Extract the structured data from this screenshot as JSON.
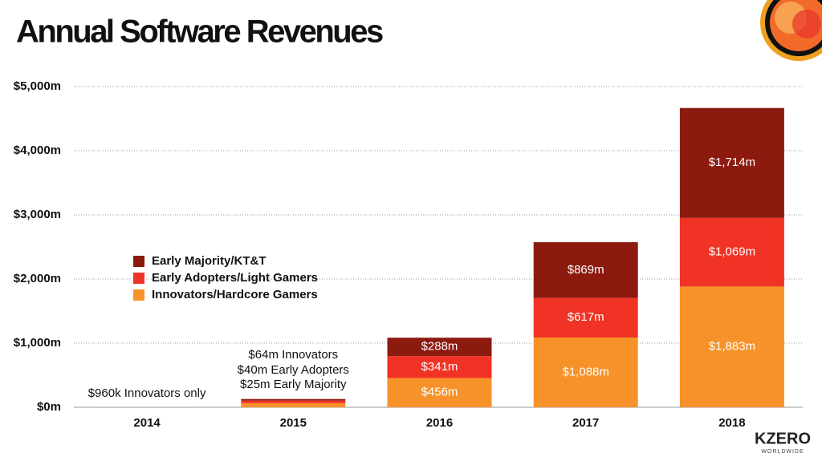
{
  "chart_data": {
    "type": "stacked_bar",
    "title": "Annual Software Revenues",
    "categories": [
      "2014",
      "2015",
      "2016",
      "2017",
      "2018"
    ],
    "series": [
      {
        "name": "Innovators/Hardcore Gamers",
        "color": "#f7922a",
        "values": [
          0.96,
          64,
          456,
          1088,
          1883
        ],
        "value_labels": [
          null,
          null,
          "$456m",
          "$1,088m",
          "$1,883m"
        ]
      },
      {
        "name": "Early Adopters/Light Gamers",
        "color": "#f03324",
        "values": [
          0,
          40,
          341,
          617,
          1069
        ],
        "value_labels": [
          null,
          null,
          "$341m",
          "$617m",
          "$1,069m"
        ]
      },
      {
        "name": "Early Majority/KT&T",
        "color": "#8c1a0f",
        "values": [
          0,
          25,
          288,
          869,
          1714
        ],
        "value_labels": [
          null,
          null,
          "$288m",
          "$869m",
          "$1,714m"
        ]
      }
    ],
    "ylim": [
      0,
      5000
    ],
    "yticks": [
      {
        "value": 0,
        "label": "$0m"
      },
      {
        "value": 1000,
        "label": "$1,000m"
      },
      {
        "value": 2000,
        "label": "$2,000m"
      },
      {
        "value": 3000,
        "label": "$3,000m"
      },
      {
        "value": 4000,
        "label": "$4,000m"
      },
      {
        "value": 5000,
        "label": "$5,000m"
      }
    ],
    "grid": true,
    "annotations": [
      "$960k Innovators only",
      "$64m Innovators",
      "$40m Early Adopters",
      "$25m Early Majority"
    ]
  },
  "logo": {
    "text": "KZERO",
    "subtext": "WORLDWIDE"
  }
}
